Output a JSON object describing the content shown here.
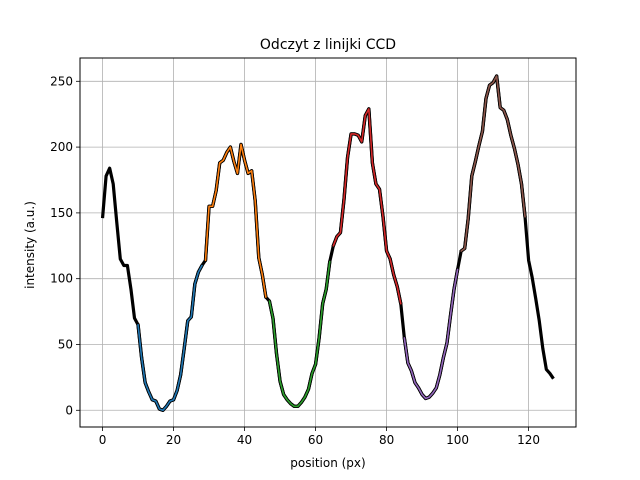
{
  "chart_data": {
    "type": "line",
    "title": "Odczyt z linijki CCD",
    "xlabel": "position (px)",
    "ylabel": "intensity (a.u.)",
    "xlim": [
      -6.35,
      133.35
    ],
    "ylim": [
      -12.7,
      267.7
    ],
    "xticks": [
      0,
      20,
      40,
      60,
      80,
      100,
      120
    ],
    "yticks": [
      0,
      50,
      100,
      150,
      200,
      250
    ],
    "grid": true,
    "colors": {
      "base": "#000000",
      "blue": "#1f77b4",
      "orange": "#ff7f0e",
      "green": "#2ca02c",
      "red": "#d62728",
      "purple": "#9467bd",
      "brown": "#8c564b",
      "grid": "#b0b0b0"
    },
    "series": [
      {
        "color_key": "base",
        "x": [
          0,
          1,
          2,
          3,
          4,
          5,
          6,
          7,
          8,
          9,
          10,
          11,
          12,
          13,
          14,
          15,
          16,
          17,
          18,
          19,
          20,
          21,
          22,
          23,
          24,
          25,
          26,
          27,
          28,
          29,
          30,
          31,
          32,
          33,
          34,
          35,
          36,
          37,
          38,
          39,
          40,
          41,
          42,
          43,
          44,
          45,
          46,
          47,
          48,
          49,
          50,
          51,
          52,
          53,
          54,
          55,
          56,
          57,
          58,
          59,
          60,
          61,
          62,
          63,
          64,
          65,
          66,
          67,
          68,
          69,
          70,
          71,
          72,
          73,
          74,
          75,
          76,
          77,
          78,
          79,
          80,
          81,
          82,
          83,
          84,
          85,
          86,
          87,
          88,
          89,
          90,
          91,
          92,
          93,
          94,
          95,
          96,
          97,
          98,
          99,
          100,
          101,
          102,
          103,
          104,
          105,
          106,
          107,
          108,
          109,
          110,
          111,
          112,
          113,
          114,
          115,
          116,
          117,
          118,
          119,
          120,
          121,
          122,
          123,
          124,
          125,
          126,
          127
        ],
        "y": [
          146,
          178,
          184,
          172,
          143,
          115,
          110,
          110,
          92,
          70,
          65,
          40,
          21,
          14,
          8,
          7,
          1,
          0,
          3,
          7,
          8,
          15,
          27,
          47,
          68,
          71,
          96,
          105,
          110,
          114,
          155,
          155,
          167,
          188,
          190,
          196,
          200,
          189,
          180,
          202,
          190,
          180,
          182,
          159,
          116,
          103,
          86,
          83,
          70,
          43,
          22,
          12,
          8,
          5,
          3,
          3,
          6,
          10,
          16,
          28,
          35,
          55,
          81,
          92,
          113,
          125,
          132,
          135,
          160,
          192,
          210,
          210,
          209,
          204,
          224,
          229,
          188,
          172,
          168,
          147,
          121,
          115,
          103,
          94,
          81,
          55,
          36,
          30,
          21,
          17,
          12,
          9,
          10,
          13,
          17,
          27,
          40,
          51,
          72,
          92,
          107,
          121,
          123,
          146,
          178,
          189,
          201,
          212,
          237,
          247,
          249,
          254,
          230,
          228,
          221,
          209,
          199,
          187,
          172,
          147,
          114,
          101,
          85,
          68,
          47,
          31,
          28,
          24
        ]
      },
      {
        "color_key": "blue",
        "x": [
          10,
          11,
          12,
          13,
          14,
          15,
          16,
          17,
          18,
          19,
          20,
          21,
          22,
          23,
          24,
          25,
          26,
          27,
          28
        ],
        "y": [
          65,
          40,
          21,
          14,
          8,
          7,
          1,
          0,
          3,
          7,
          8,
          15,
          27,
          47,
          68,
          71,
          96,
          105,
          110
        ]
      },
      {
        "color_key": "orange",
        "x": [
          29,
          30,
          31,
          32,
          33,
          34,
          35,
          36,
          37,
          38,
          39,
          40,
          41,
          42,
          43,
          44,
          45,
          46
        ],
        "y": [
          114,
          155,
          155,
          167,
          188,
          190,
          196,
          200,
          189,
          180,
          202,
          190,
          180,
          182,
          159,
          116,
          103,
          86
        ]
      },
      {
        "color_key": "green",
        "x": [
          47,
          48,
          49,
          50,
          51,
          52,
          53,
          54,
          55,
          56,
          57,
          58,
          59,
          60,
          61,
          62,
          63,
          64
        ],
        "y": [
          83,
          70,
          43,
          22,
          12,
          8,
          5,
          3,
          3,
          6,
          10,
          16,
          28,
          35,
          55,
          81,
          92,
          113
        ]
      },
      {
        "color_key": "red",
        "x": [
          65,
          66,
          67,
          68,
          69,
          70,
          71,
          72,
          73,
          74,
          75,
          76,
          77,
          78,
          79,
          80,
          81,
          82,
          83,
          84
        ],
        "y": [
          125,
          132,
          135,
          160,
          192,
          210,
          210,
          209,
          204,
          224,
          229,
          188,
          172,
          168,
          147,
          121,
          115,
          103,
          94,
          81
        ]
      },
      {
        "color_key": "purple",
        "x": [
          85,
          86,
          87,
          88,
          89,
          90,
          91,
          92,
          93,
          94,
          95,
          96,
          97,
          98,
          99,
          100
        ],
        "y": [
          55,
          36,
          30,
          21,
          17,
          12,
          9,
          10,
          13,
          17,
          27,
          40,
          51,
          72,
          92,
          107
        ]
      },
      {
        "color_key": "brown",
        "x": [
          101,
          102,
          103,
          104,
          105,
          106,
          107,
          108,
          109,
          110,
          111,
          112,
          113,
          114,
          115,
          116,
          117,
          118,
          119
        ],
        "y": [
          121,
          123,
          146,
          178,
          189,
          201,
          212,
          237,
          247,
          249,
          254,
          230,
          228,
          221,
          209,
          199,
          187,
          172,
          147
        ]
      }
    ]
  }
}
